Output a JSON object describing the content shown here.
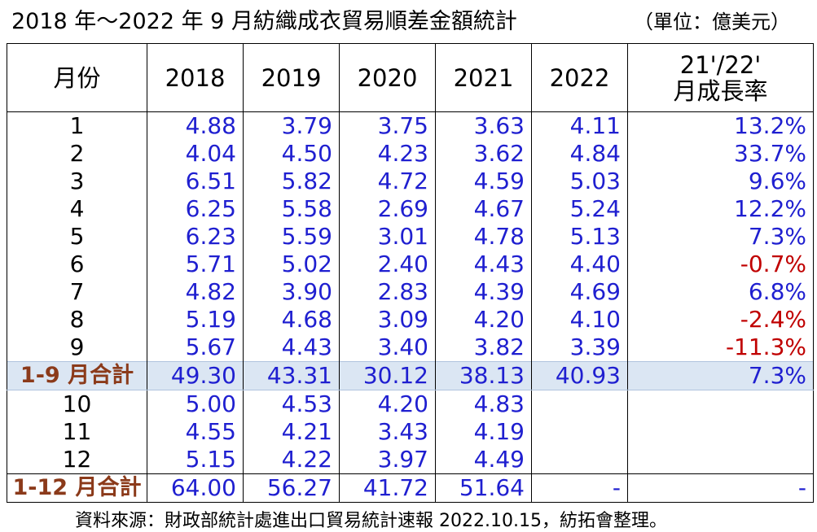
{
  "title": "2018 年～2022 年 9 月紡織成衣貿易順差金額統計",
  "unit": "（單位：億美元）",
  "headers": {
    "month": "月份",
    "y2018": "2018",
    "y2019": "2019",
    "y2020": "2020",
    "y2021": "2021",
    "y2022": "2022",
    "growth_line1": "21'/22'",
    "growth_line2": "月成長率"
  },
  "rows": [
    {
      "month": "1",
      "y2018": "4.88",
      "y2019": "3.79",
      "y2020": "3.75",
      "y2021": "3.63",
      "y2022": "4.11",
      "growth": "13.2%"
    },
    {
      "month": "2",
      "y2018": "4.04",
      "y2019": "4.50",
      "y2020": "4.23",
      "y2021": "3.62",
      "y2022": "4.84",
      "growth": "33.7%"
    },
    {
      "month": "3",
      "y2018": "6.51",
      "y2019": "5.82",
      "y2020": "4.72",
      "y2021": "4.59",
      "y2022": "5.03",
      "growth": "9.6%"
    },
    {
      "month": "4",
      "y2018": "6.25",
      "y2019": "5.58",
      "y2020": "2.69",
      "y2021": "4.67",
      "y2022": "5.24",
      "growth": "12.2%"
    },
    {
      "month": "5",
      "y2018": "6.23",
      "y2019": "5.59",
      "y2020": "3.01",
      "y2021": "4.78",
      "y2022": "5.13",
      "growth": "7.3%"
    },
    {
      "month": "6",
      "y2018": "5.71",
      "y2019": "5.02",
      "y2020": "2.40",
      "y2021": "4.43",
      "y2022": "4.40",
      "growth": "-0.7%"
    },
    {
      "month": "7",
      "y2018": "4.82",
      "y2019": "3.90",
      "y2020": "2.83",
      "y2021": "4.39",
      "y2022": "4.69",
      "growth": "6.8%"
    },
    {
      "month": "8",
      "y2018": "5.19",
      "y2019": "4.68",
      "y2020": "3.09",
      "y2021": "4.20",
      "y2022": "4.10",
      "growth": "-2.4%"
    },
    {
      "month": "9",
      "y2018": "5.67",
      "y2019": "4.43",
      "y2020": "3.40",
      "y2021": "3.82",
      "y2022": "3.39",
      "growth": "-11.3%"
    }
  ],
  "subtotal": {
    "month": "1-9 月合計",
    "y2018": "49.30",
    "y2019": "43.31",
    "y2020": "30.12",
    "y2021": "38.13",
    "y2022": "40.93",
    "growth": "7.3%"
  },
  "rows_late": [
    {
      "month": "10",
      "y2018": "5.00",
      "y2019": "4.53",
      "y2020": "4.20",
      "y2021": "4.83",
      "y2022": "",
      "growth": ""
    },
    {
      "month": "11",
      "y2018": "4.55",
      "y2019": "4.21",
      "y2020": "3.43",
      "y2021": "4.19",
      "y2022": "",
      "growth": ""
    },
    {
      "month": "12",
      "y2018": "5.15",
      "y2019": "4.22",
      "y2020": "3.97",
      "y2021": "4.49",
      "y2022": "",
      "growth": ""
    }
  ],
  "total": {
    "month": "1-12 月合計",
    "y2018": "64.00",
    "y2019": "56.27",
    "y2020": "41.72",
    "y2021": "51.64",
    "y2022": "-",
    "growth": "-"
  },
  "source": "資料來源：財政部統計處進出口貿易統計速報 2022.10.15，紡拓會整理。",
  "colors": {
    "value": "#1f1fd0",
    "negative": "#c00000",
    "total_label": "#8b3a1a",
    "highlight_bg": "#dbe6f3"
  }
}
